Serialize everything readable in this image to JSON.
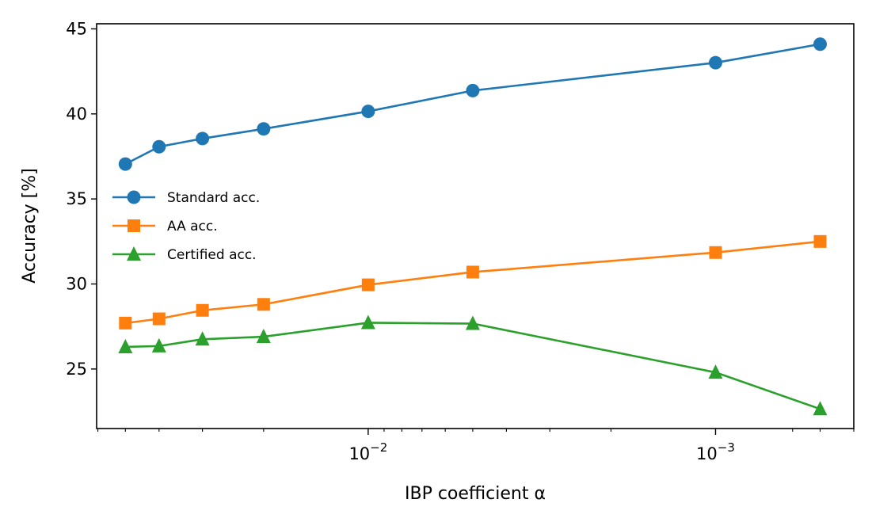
{
  "chart_data": {
    "type": "line",
    "xlabel": "IBP coefficient α",
    "ylabel": "Accuracy [%]",
    "x_scale": "log-reversed",
    "x_ticks": [
      {
        "value": 0.01,
        "base": "10",
        "exp": "−2"
      },
      {
        "value": 0.001,
        "base": "10",
        "exp": "−3"
      }
    ],
    "ylim": [
      21.5,
      45.3
    ],
    "y_ticks": [
      "25",
      "30",
      "35",
      "40",
      "45"
    ],
    "x": [
      0.05,
      0.04,
      0.03,
      0.02,
      0.01,
      0.005,
      0.001,
      0.0005
    ],
    "series": [
      {
        "name": "Standard acc.",
        "color": "#1f77b4",
        "marker": "circle",
        "values": [
          37.05,
          38.07,
          38.55,
          39.12,
          40.15,
          41.37,
          43.01,
          44.1
        ]
      },
      {
        "name": "AA acc.",
        "color": "#ff7f0e",
        "marker": "square",
        "values": [
          27.7,
          27.95,
          28.45,
          28.8,
          29.95,
          30.7,
          31.85,
          32.5
        ]
      },
      {
        "name": "Certified acc.",
        "color": "#2ca02c",
        "marker": "triangle",
        "values": [
          26.3,
          26.35,
          26.75,
          26.9,
          27.72,
          27.67,
          24.8,
          22.65
        ]
      }
    ],
    "legend_position": "center-left",
    "grid": false
  }
}
